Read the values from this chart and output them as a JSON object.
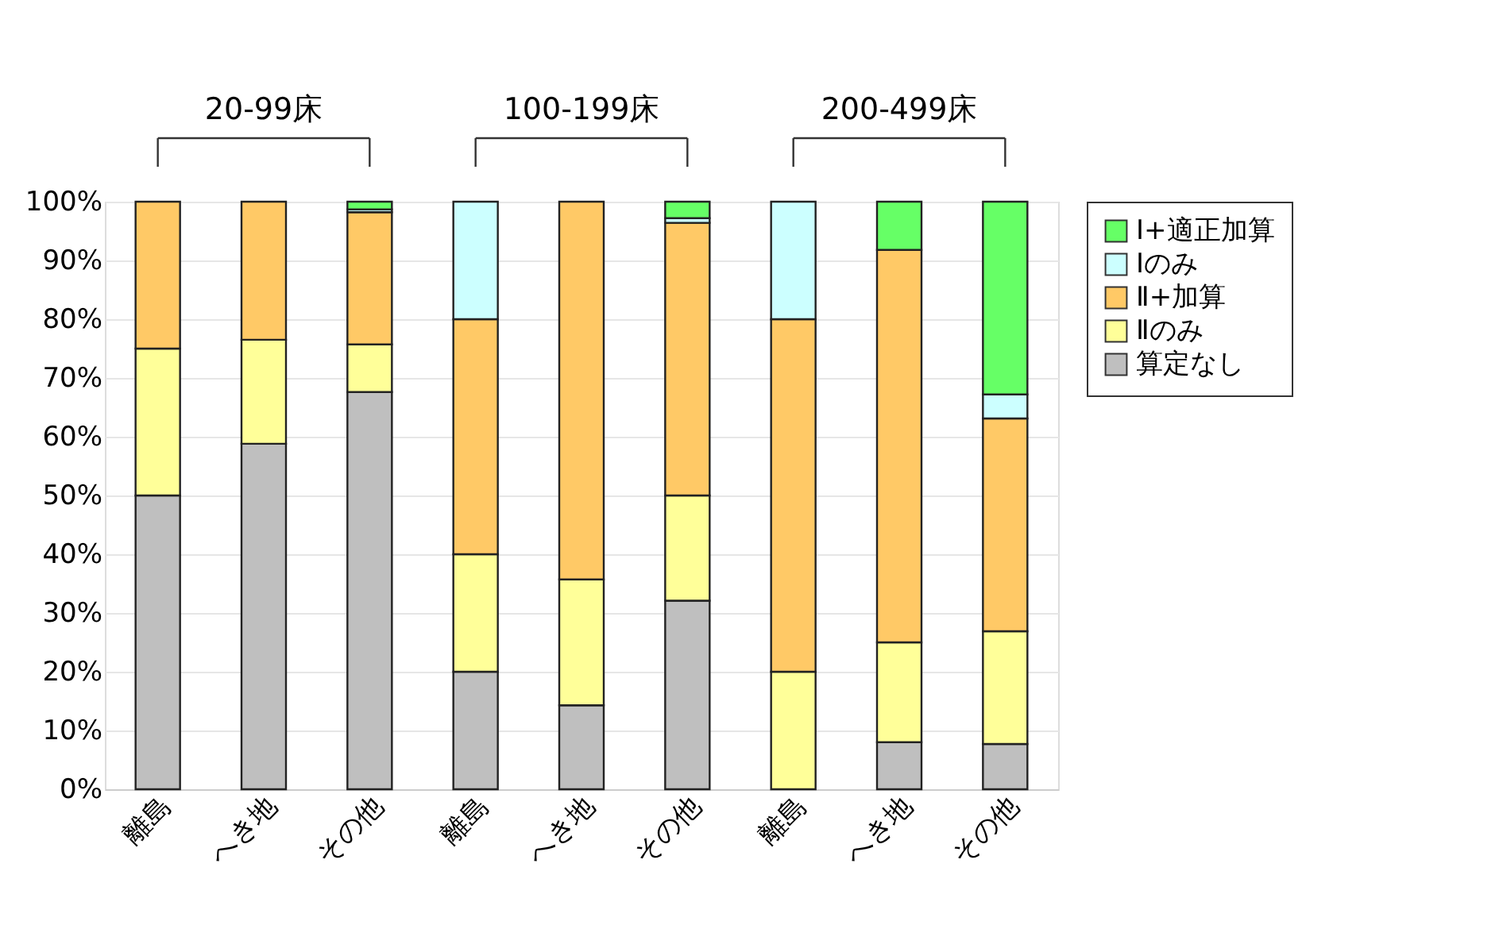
{
  "chart_data": {
    "type": "bar",
    "stacked": true,
    "categories": [
      "離島",
      "へき地",
      "その他",
      "離島",
      "へき地",
      "その他",
      "離島",
      "へき地",
      "その他"
    ],
    "annotations": [
      "20-99床",
      "100-199床",
      "200-499床"
    ],
    "series": [
      {
        "name": "算定なし",
        "color": "#bfbfbf",
        "values": [
          50,
          58.8,
          67.6,
          20,
          14.3,
          32.1,
          null,
          8.0,
          7.7
        ]
      },
      {
        "name": "Ⅱのみ",
        "color": "#ffff99",
        "values": [
          25,
          17.7,
          8.1,
          20,
          21.4,
          17.9,
          20,
          17.0,
          19.2
        ]
      },
      {
        "name": "Ⅱ+加算",
        "color": "#ffc966",
        "values": [
          25,
          23.5,
          22.5,
          40,
          64.3,
          46.4,
          60,
          66.8,
          36.2
        ]
      },
      {
        "name": "Ⅰのみ",
        "color": "#ccffff",
        "values": [
          null,
          null,
          0.5,
          20,
          null,
          0.8,
          20,
          null,
          4.1
        ]
      },
      {
        "name": "Ⅰ+適正加算",
        "color": "#66ff66",
        "values": [
          null,
          null,
          1.3,
          null,
          null,
          2.8,
          null,
          8.2,
          32.8
        ]
      }
    ],
    "ylim": [
      0,
      100
    ],
    "yticks": [
      {
        "value": 0,
        "label": "0%"
      },
      {
        "value": 10,
        "label": "10%"
      },
      {
        "value": 20,
        "label": "20%"
      },
      {
        "value": 30,
        "label": "30%"
      },
      {
        "value": 40,
        "label": "40%"
      },
      {
        "value": 50,
        "label": "50%"
      },
      {
        "value": 60,
        "label": "60%"
      },
      {
        "value": 70,
        "label": "70%"
      },
      {
        "value": 80,
        "label": "80%"
      },
      {
        "value": 90,
        "label": "90%"
      },
      {
        "value": 100,
        "label": "100%"
      }
    ],
    "grid": "y",
    "legend": "right"
  }
}
